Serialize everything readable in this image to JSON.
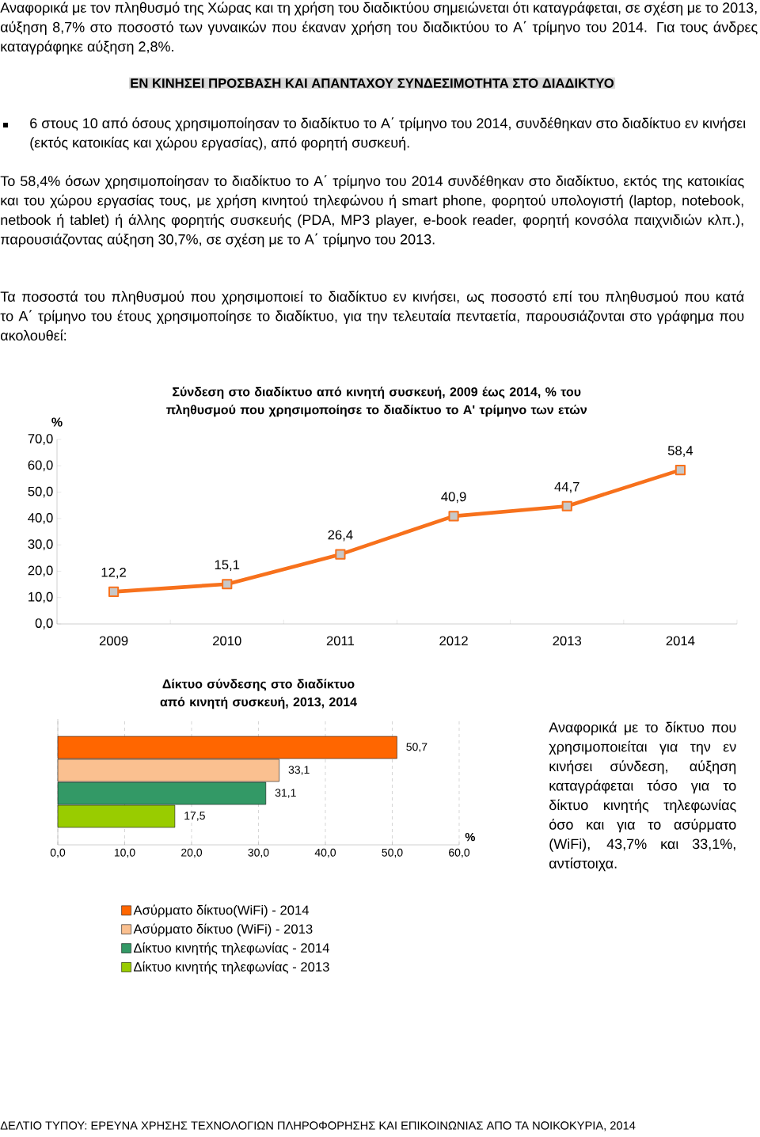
{
  "chart_data": [
    {
      "type": "line",
      "title": "Σύνδεση στο διαδίκτυο από κινητή συσκευή, 2009 έως 2014, % του πληθυσμού που χρησιμοποίησε το διαδίκτυο το Α' τρίμηνο των ετών",
      "ylabel": "%",
      "categories": [
        "2009",
        "2010",
        "2011",
        "2012",
        "2013",
        "2014"
      ],
      "series": [
        {
          "color": "#f7711c",
          "values": [
            12.2,
            15.1,
            26.4,
            40.9,
            44.7,
            58.4
          ],
          "value_labels": [
            "12,2",
            "15,1",
            "26,4",
            "40,9",
            "44,7",
            "58,4"
          ]
        }
      ],
      "marker": "square",
      "ylim": [
        0,
        70
      ],
      "yticks": [
        {
          "value": 0,
          "label": "0,0"
        },
        {
          "value": 10,
          "label": "10,0"
        },
        {
          "value": 20,
          "label": "20,0"
        },
        {
          "value": 30,
          "label": "30,0"
        },
        {
          "value": 40,
          "label": "40,0"
        },
        {
          "value": 50,
          "label": "50,0"
        },
        {
          "value": 60,
          "label": "60,0"
        },
        {
          "value": 70,
          "label": "70,0"
        }
      ],
      "annotations": [
        "Αναφορικά με τον πληθυσμό της Χώρας και τη χρήση του διαδικτύου σημειώνεται ότι καταγράφεται, σε σχέση με το 2013, αύξηση 8,7% στο ποσοστό των γυναικών που έκαναν χρήση του διαδικτύου το Α΄ τρίμηνο του 2014. Για τους άνδρες καταγράφηκε αύξηση 2,8%.",
        "ΕΝ ΚΙΝΗΣΕΙ ΠΡΟΣΒΑΣΗ ΚΑΙ ΑΠΑΝΤΑΧΟΥ ΣΥΝΔΕΣΙΜΟΤΗΤΑ ΣΤΟ ΔΙΑΔΙΚΤΥΟ",
        "6 στους 10 από όσους χρησιμοποίησαν το διαδίκτυο το Α΄ τρίμηνο του 2014, συνδέθηκαν στο διαδίκτυο εν κινήσει (εκτός κατοικίας και χώρου εργασίας), από φορητή συσκευή.",
        "Το 58,4% όσων χρησιμοποίησαν το διαδίκτυο το Α΄ τρίμηνο του 2014 συνδέθηκαν στο διαδίκτυο, εκτός της κατοικίας και του χώρου εργασίας τους, με χρήση κινητού τηλεφώνου ή smart phone, φορητού υπολογιστή (laptop, notebook, netbook ή tablet) ή άλλης φορητής συσκευής (PDA, MP3 player, e-book reader, φορητή κονσόλα παιχνιδιών κλπ.), παρουσιάζοντας αύξηση 30,7%, σε σχέση με το Α΄ τρίμηνο του 2013.",
        "Τα ποσοστά του πληθυσμού που χρησιμοποιεί το διαδίκτυο εν κινήσει, ως ποσοστό επί του πληθυσμού που κατά το Α΄ τρίμηνο του έτους χρησιμοποίησε το διαδίκτυο, για την τελευταία πενταετία, παρουσιάζονται στο γράφημα που ακολουθεί:"
      ]
    },
    {
      "type": "bar",
      "orientation": "horizontal",
      "title": "Δίκτυο σύνδεσης στο διαδίκτυο από κινητή συσκευή, 2013, 2014",
      "xlabel": "%",
      "categories": [
        null
      ],
      "series": [
        {
          "name": "Ασύρματο δίκτυο(WiFi) - 2014",
          "color": "#ff6600",
          "values": [
            50.7
          ],
          "value_labels": [
            "50,7"
          ]
        },
        {
          "name": "Ασύρματο δίκτυο (WiFi) - 2013",
          "color": "#fac090",
          "values": [
            33.1
          ],
          "value_labels": [
            "33,1"
          ]
        },
        {
          "name": "Δίκτυο κινητής τηλεφωνίας - 2014",
          "color": "#339966",
          "values": [
            31.1
          ],
          "value_labels": [
            "31,1"
          ]
        },
        {
          "name": "Δίκτυο κινητής τηλεφωνίας - 2013",
          "color": "#99cc00",
          "values": [
            17.5
          ],
          "value_labels": [
            "17,5"
          ]
        }
      ],
      "xlim": [
        0,
        60
      ],
      "xticks": [
        {
          "value": 0,
          "label": "0,0"
        },
        {
          "value": 10,
          "label": "10,0"
        },
        {
          "value": 20,
          "label": "20,0"
        },
        {
          "value": 30,
          "label": "30,0"
        },
        {
          "value": 40,
          "label": "40,0"
        },
        {
          "value": 50,
          "label": "50,0"
        },
        {
          "value": 60,
          "label": "60,0"
        }
      ],
      "grid": "x",
      "legend": "bottom",
      "annotations": [
        "Αναφορικά με το δίκτυο που χρησιμοποιείται για την εν κινήσει σύνδεση, αύξηση καταγράφεται τόσο για το δίκτυο κινητής τηλεφωνίας όσο και για το ασύρματο (WiFi), 43,7% και 33,1%, αντίστοιχα.",
        "ΔΕΛΤΙΟ ΤΥΠΟΥ: ΕΡΕΥΝΑ ΧΡΗΣΗΣ ΤΕΧΝΟΛΟΓΙΩΝ ΠΛΗΡΟΦΟΡΗΣΗΣ ΚΑΙ ΕΠΙΚΟΙΝΩΝΙΑΣ ΑΠΟ ΤΑ ΝΟΙΚΟΚΥΡΙΑ, 2014"
      ]
    }
  ]
}
